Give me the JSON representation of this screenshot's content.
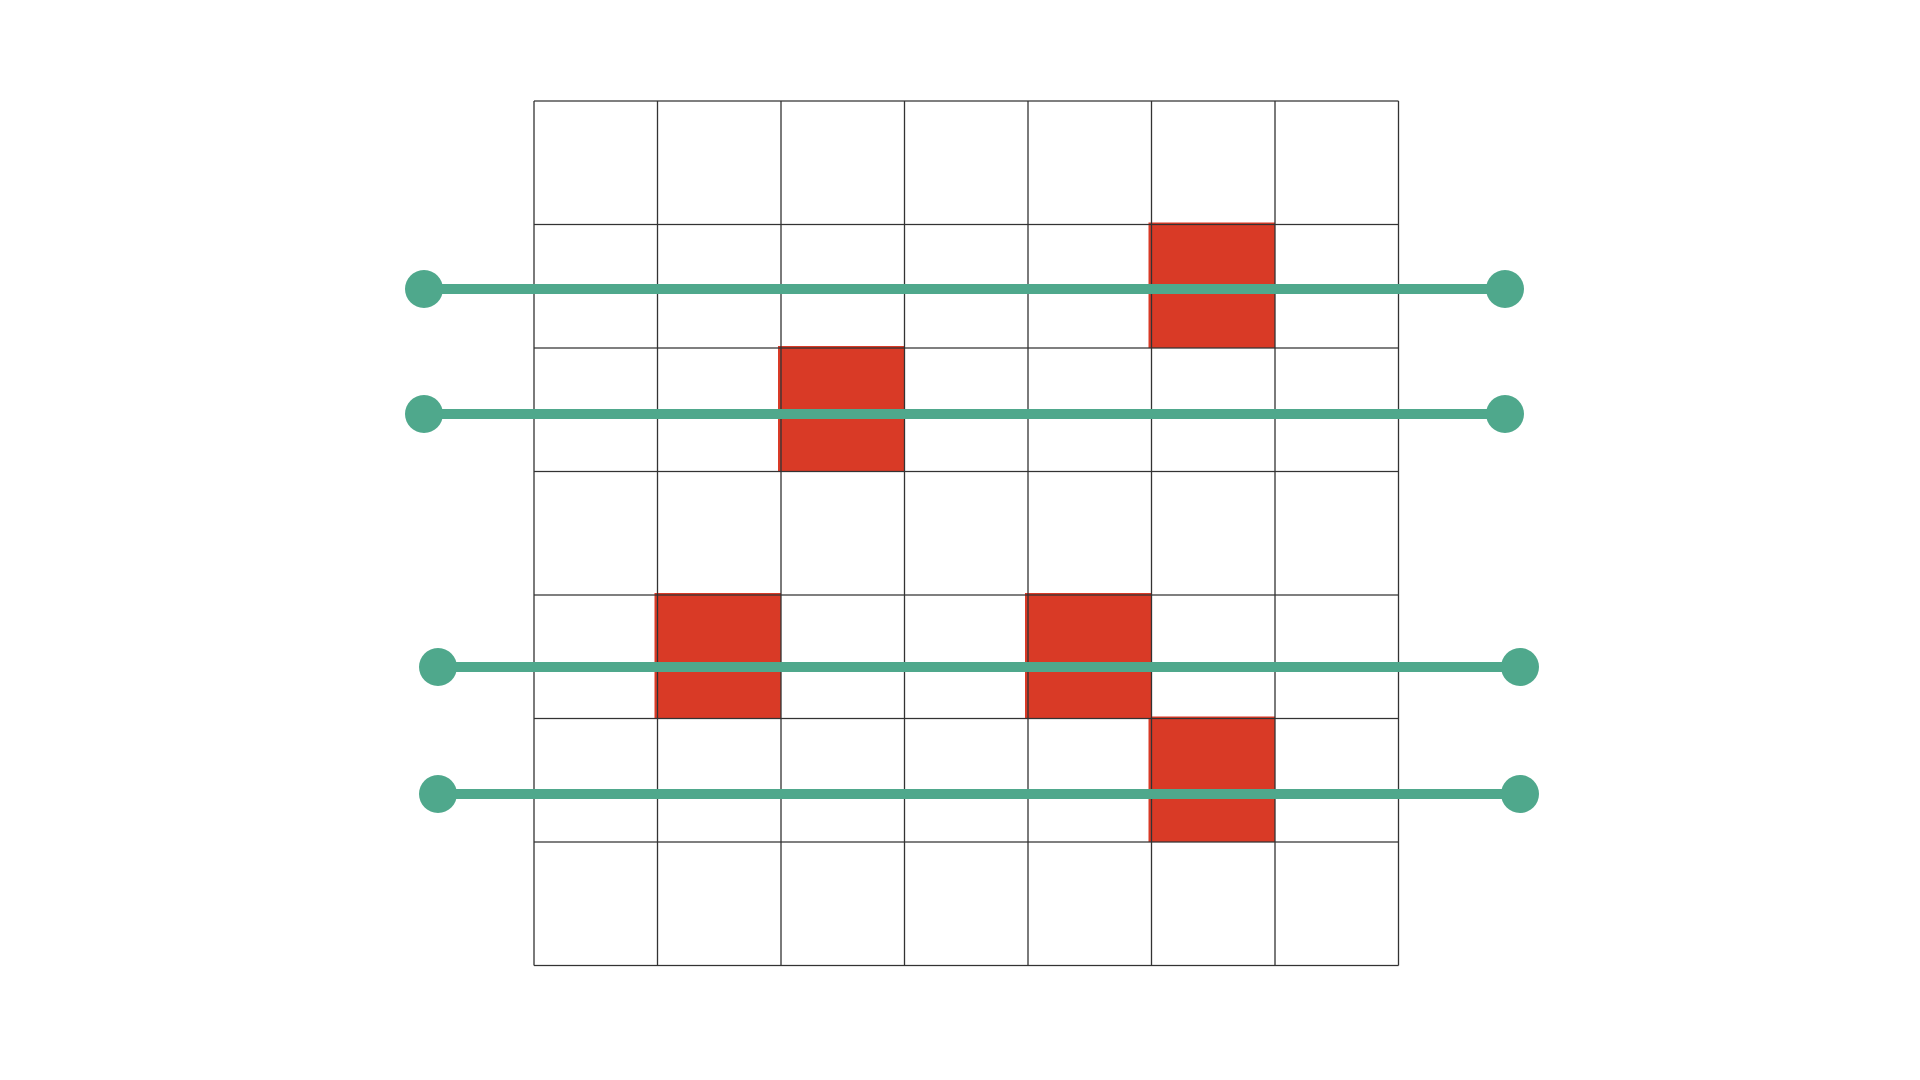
{
  "grid": {
    "columns": 7,
    "rows": 7,
    "line_color": "#333333",
    "background_color": "#ffffff"
  },
  "filled_cells": {
    "color": "#d93a26",
    "cells": [
      {
        "row": 2,
        "col": 6
      },
      {
        "row": 3,
        "col": 3
      },
      {
        "row": 5,
        "col": 2
      },
      {
        "row": 5,
        "col": 5
      },
      {
        "row": 6,
        "col": 6
      }
    ]
  },
  "lines": {
    "color": "#4fa88c",
    "count": 4,
    "endpoint_shape": "filled-circle"
  }
}
